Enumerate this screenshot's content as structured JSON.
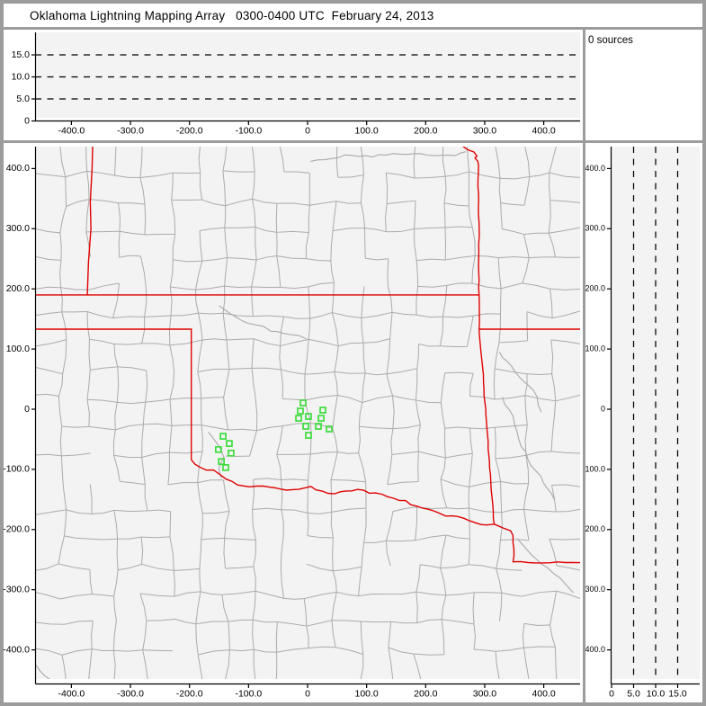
{
  "window": {
    "title": "Oklahoma Lightning Mapping Array   0300-0400 UTC  February 24, 2013"
  },
  "status": {
    "sources_label": "0 sources",
    "source_count": 0
  },
  "colors": {
    "frame_gray": "#9c9c9c",
    "panel_white": "#ffffff",
    "plot_background": "#f3f3f3",
    "county_line": "#ababab",
    "river_line": "#a9a9a9",
    "state_border": "#e00000",
    "station_marker": "#3ddc3d",
    "axis": "#000000",
    "gridline": "#000000"
  },
  "chart_data": {
    "type": "scatter",
    "title": "Oklahoma Lightning Mapping Array",
    "time_range": "0300-0400 UTC",
    "date": "February 24, 2013",
    "source_count": 0,
    "sources_label": "0 sources",
    "grid": "dashed altitude gridlines at 5, 10, 15 km",
    "altitude_gridlines_km": [
      5,
      10,
      15
    ],
    "ew_altitude_panel": {
      "xlim": [
        -462,
        462
      ],
      "ylim": [
        0,
        20.1
      ],
      "x_ticks": [
        -400,
        -300,
        -200,
        -100,
        0,
        100,
        200,
        300,
        400
      ],
      "x_tick_labels": [
        "-400.0",
        "-300.0",
        "-200.0",
        "-100.0",
        "0",
        "100.0",
        "200.0",
        "300.0",
        "400.0"
      ],
      "y_ticks": [
        0,
        5,
        10,
        15
      ],
      "y_tick_labels": [
        "0",
        "5.0",
        "10.0",
        "15.0"
      ],
      "points": []
    },
    "plan_panel": {
      "xlim": [
        -462,
        462
      ],
      "ylim": [
        -449,
        437
      ],
      "x_ticks": [
        -400,
        -300,
        -200,
        -100,
        0,
        100,
        200,
        300,
        400
      ],
      "x_tick_labels": [
        "-400.0",
        "-300.0",
        "-200.0",
        "-100.0",
        "0",
        "100.0",
        "200.0",
        "300.0",
        "400.0"
      ],
      "y_ticks": [
        400,
        300,
        200,
        100,
        0,
        -100,
        -200,
        -300,
        -400
      ],
      "y_tick_labels": [
        "400.0",
        "300.0",
        "200.0",
        "100.0",
        "0",
        "-100.0",
        "-200.0",
        "-300.0",
        "-400.0"
      ],
      "points": [],
      "stations_km": [
        [
          -7.6,
          10.5
        ],
        [
          -12.2,
          -3
        ],
        [
          -15.2,
          -15
        ],
        [
          1.5,
          -12
        ],
        [
          25.9,
          -1.5
        ],
        [
          22.9,
          -15
        ],
        [
          -3,
          -28.4
        ],
        [
          18.3,
          -28.4
        ],
        [
          36.6,
          -32.9
        ],
        [
          1.5,
          -43.4
        ],
        [
          -143,
          -45
        ],
        [
          -132.6,
          -57
        ],
        [
          -151,
          -67
        ],
        [
          -129.6,
          -73
        ],
        [
          -146,
          -87
        ],
        [
          -138.7,
          -97
        ]
      ],
      "state_borders_km": {
        "colorado_kansas": [
          [
            -364,
            437
          ],
          [
            -365,
            400
          ],
          [
            -368,
            345
          ],
          [
            -367,
            300
          ],
          [
            -371,
            245
          ],
          [
            -373,
            190
          ]
        ],
        "oklahoma_kansas": [
          [
            -462,
            190
          ],
          [
            290,
            190
          ]
        ],
        "texas_panhandle_100w": [
          [
            -462,
            133
          ],
          [
            -197,
            133
          ],
          [
            -197,
            -84
          ]
        ],
        "red_river_ok_tx": [
          [
            -197,
            -84
          ],
          [
            -183,
            -98
          ],
          [
            -160,
            -102
          ],
          [
            -138,
            -116
          ],
          [
            -118,
            -123
          ],
          [
            -98,
            -128
          ],
          [
            -75,
            -130
          ],
          [
            -55,
            -133
          ],
          [
            -35,
            -137
          ],
          [
            -15,
            -133
          ],
          [
            5,
            -130
          ],
          [
            25,
            -135
          ],
          [
            45,
            -139
          ],
          [
            65,
            -133
          ],
          [
            85,
            -132
          ],
          [
            105,
            -138
          ],
          [
            125,
            -143
          ],
          [
            145,
            -150
          ],
          [
            165,
            -155
          ],
          [
            185,
            -161
          ],
          [
            205,
            -163
          ],
          [
            225,
            -170
          ],
          [
            245,
            -176
          ],
          [
            265,
            -181
          ],
          [
            285,
            -186
          ],
          [
            305,
            -189
          ],
          [
            316,
            -191
          ]
        ],
        "kansas_missouri_ok_arkansas": [
          [
            263,
            437
          ],
          [
            271,
            431
          ],
          [
            281,
            427
          ],
          [
            286,
            421
          ],
          [
            283,
            417
          ],
          [
            288,
            412
          ],
          [
            289,
            405
          ],
          [
            290,
            300
          ],
          [
            290,
            190
          ],
          [
            291,
            133
          ],
          [
            294,
            95
          ],
          [
            298,
            45
          ],
          [
            302,
            -10
          ],
          [
            306,
            -65
          ],
          [
            310,
            -120
          ],
          [
            313,
            -160
          ],
          [
            316,
            -191
          ]
        ],
        "missouri_arkansas": [
          [
            291,
            133
          ],
          [
            462,
            133
          ]
        ],
        "texas_arkansas": [
          [
            316,
            -191
          ],
          [
            332,
            -196
          ],
          [
            344,
            -202
          ],
          [
            349,
            -210
          ],
          [
            348,
            -255
          ],
          [
            462,
            -255
          ]
        ]
      },
      "rivers_km": [
        [
          [
            5,
            412
          ],
          [
            40,
            420
          ],
          [
            75,
            424
          ],
          [
            110,
            418
          ],
          [
            145,
            426
          ],
          [
            180,
            428
          ],
          [
            215,
            421
          ],
          [
            250,
            424
          ],
          [
            268,
            428
          ]
        ],
        [
          [
            -150,
            172
          ],
          [
            -120,
            152
          ],
          [
            -90,
            140
          ],
          [
            -62,
            130
          ],
          [
            -30,
            122
          ],
          [
            -2,
            117
          ]
        ],
        [
          [
            325,
            95
          ],
          [
            345,
            72
          ],
          [
            362,
            55
          ],
          [
            377,
            40
          ],
          [
            388,
            20
          ],
          [
            396,
            -5
          ]
        ],
        [
          [
            330,
            20
          ],
          [
            348,
            -12
          ],
          [
            360,
            -50
          ],
          [
            380,
            -92
          ],
          [
            400,
            -122
          ],
          [
            418,
            -150
          ]
        ],
        [
          [
            355,
            -215
          ],
          [
            378,
            -240
          ],
          [
            408,
            -262
          ],
          [
            438,
            -290
          ],
          [
            450,
            -305
          ]
        ],
        [
          [
            -168,
            -38
          ],
          [
            -152,
            -58
          ],
          [
            -143,
            -80
          ],
          [
            -152,
            -100
          ],
          [
            -146,
            -114
          ]
        ],
        [
          [
            -460,
            -425
          ],
          [
            -443,
            -442
          ],
          [
            -432,
            -452
          ]
        ]
      ]
    },
    "ns_altitude_panel": {
      "xlim": [
        0,
        20
      ],
      "ylim": [
        -449,
        437
      ],
      "x_ticks": [
        0,
        5,
        10,
        15
      ],
      "x_tick_labels": [
        "0",
        "5.0",
        "10.0",
        "15.0"
      ],
      "y_ticks": [
        400,
        300,
        200,
        100,
        0,
        -100,
        -200,
        -300,
        -400
      ],
      "y_tick_labels": [
        "400.0",
        "300.0",
        "200.0",
        "100.0",
        "0",
        "-100.0",
        "-200.0",
        "-300.0",
        "-400.0"
      ],
      "points": []
    }
  }
}
